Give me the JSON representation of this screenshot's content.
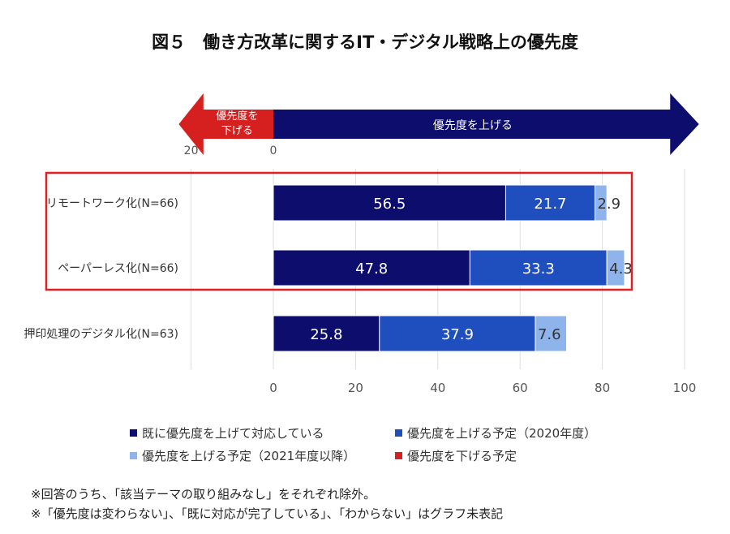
{
  "chart_data": {
    "type": "bar",
    "orientation": "horizontal",
    "stacked": true,
    "title": "図５　働き方改革に関するIT・デジタル戦略上の優先度",
    "categories": [
      "リモートワーク化(N=66)",
      "ペーパーレス化(N=66)",
      "押印処理のデジタル化(N=63)"
    ],
    "series": [
      {
        "name": "既に優先度を上げて対応している",
        "color": "#0d0d6e",
        "values": [
          56.5,
          47.8,
          25.8
        ]
      },
      {
        "name": "優先度を上げる予定（2020年度）",
        "color": "#1f4fbf",
        "values": [
          21.7,
          33.3,
          37.9
        ]
      },
      {
        "name": "優先度を上げる予定（2021年度以降）",
        "color": "#8fb4ec",
        "values": [
          2.9,
          4.3,
          7.6
        ]
      },
      {
        "name": "優先度を下げる予定",
        "color": "#d62020",
        "values": [
          0,
          0,
          0
        ]
      }
    ],
    "xlim": [
      -20,
      100
    ],
    "xticks": [
      0,
      20,
      40,
      60,
      80,
      100
    ],
    "grid": true,
    "legend": "bottom",
    "arrows": {
      "left_label_line1": "優先度を",
      "left_label_line2": "下げる",
      "right_label": "優先度を上げる",
      "left_value": "20",
      "zero_value": "0"
    },
    "highlight_rows": [
      0,
      1
    ]
  },
  "notes": [
    "※回答のうち、「該当テーマの取り組みなし」をそれぞれ除外。",
    "※「優先度は変わらない」、「既に対応が完了している」、「わからない」はグラフ未表記"
  ]
}
